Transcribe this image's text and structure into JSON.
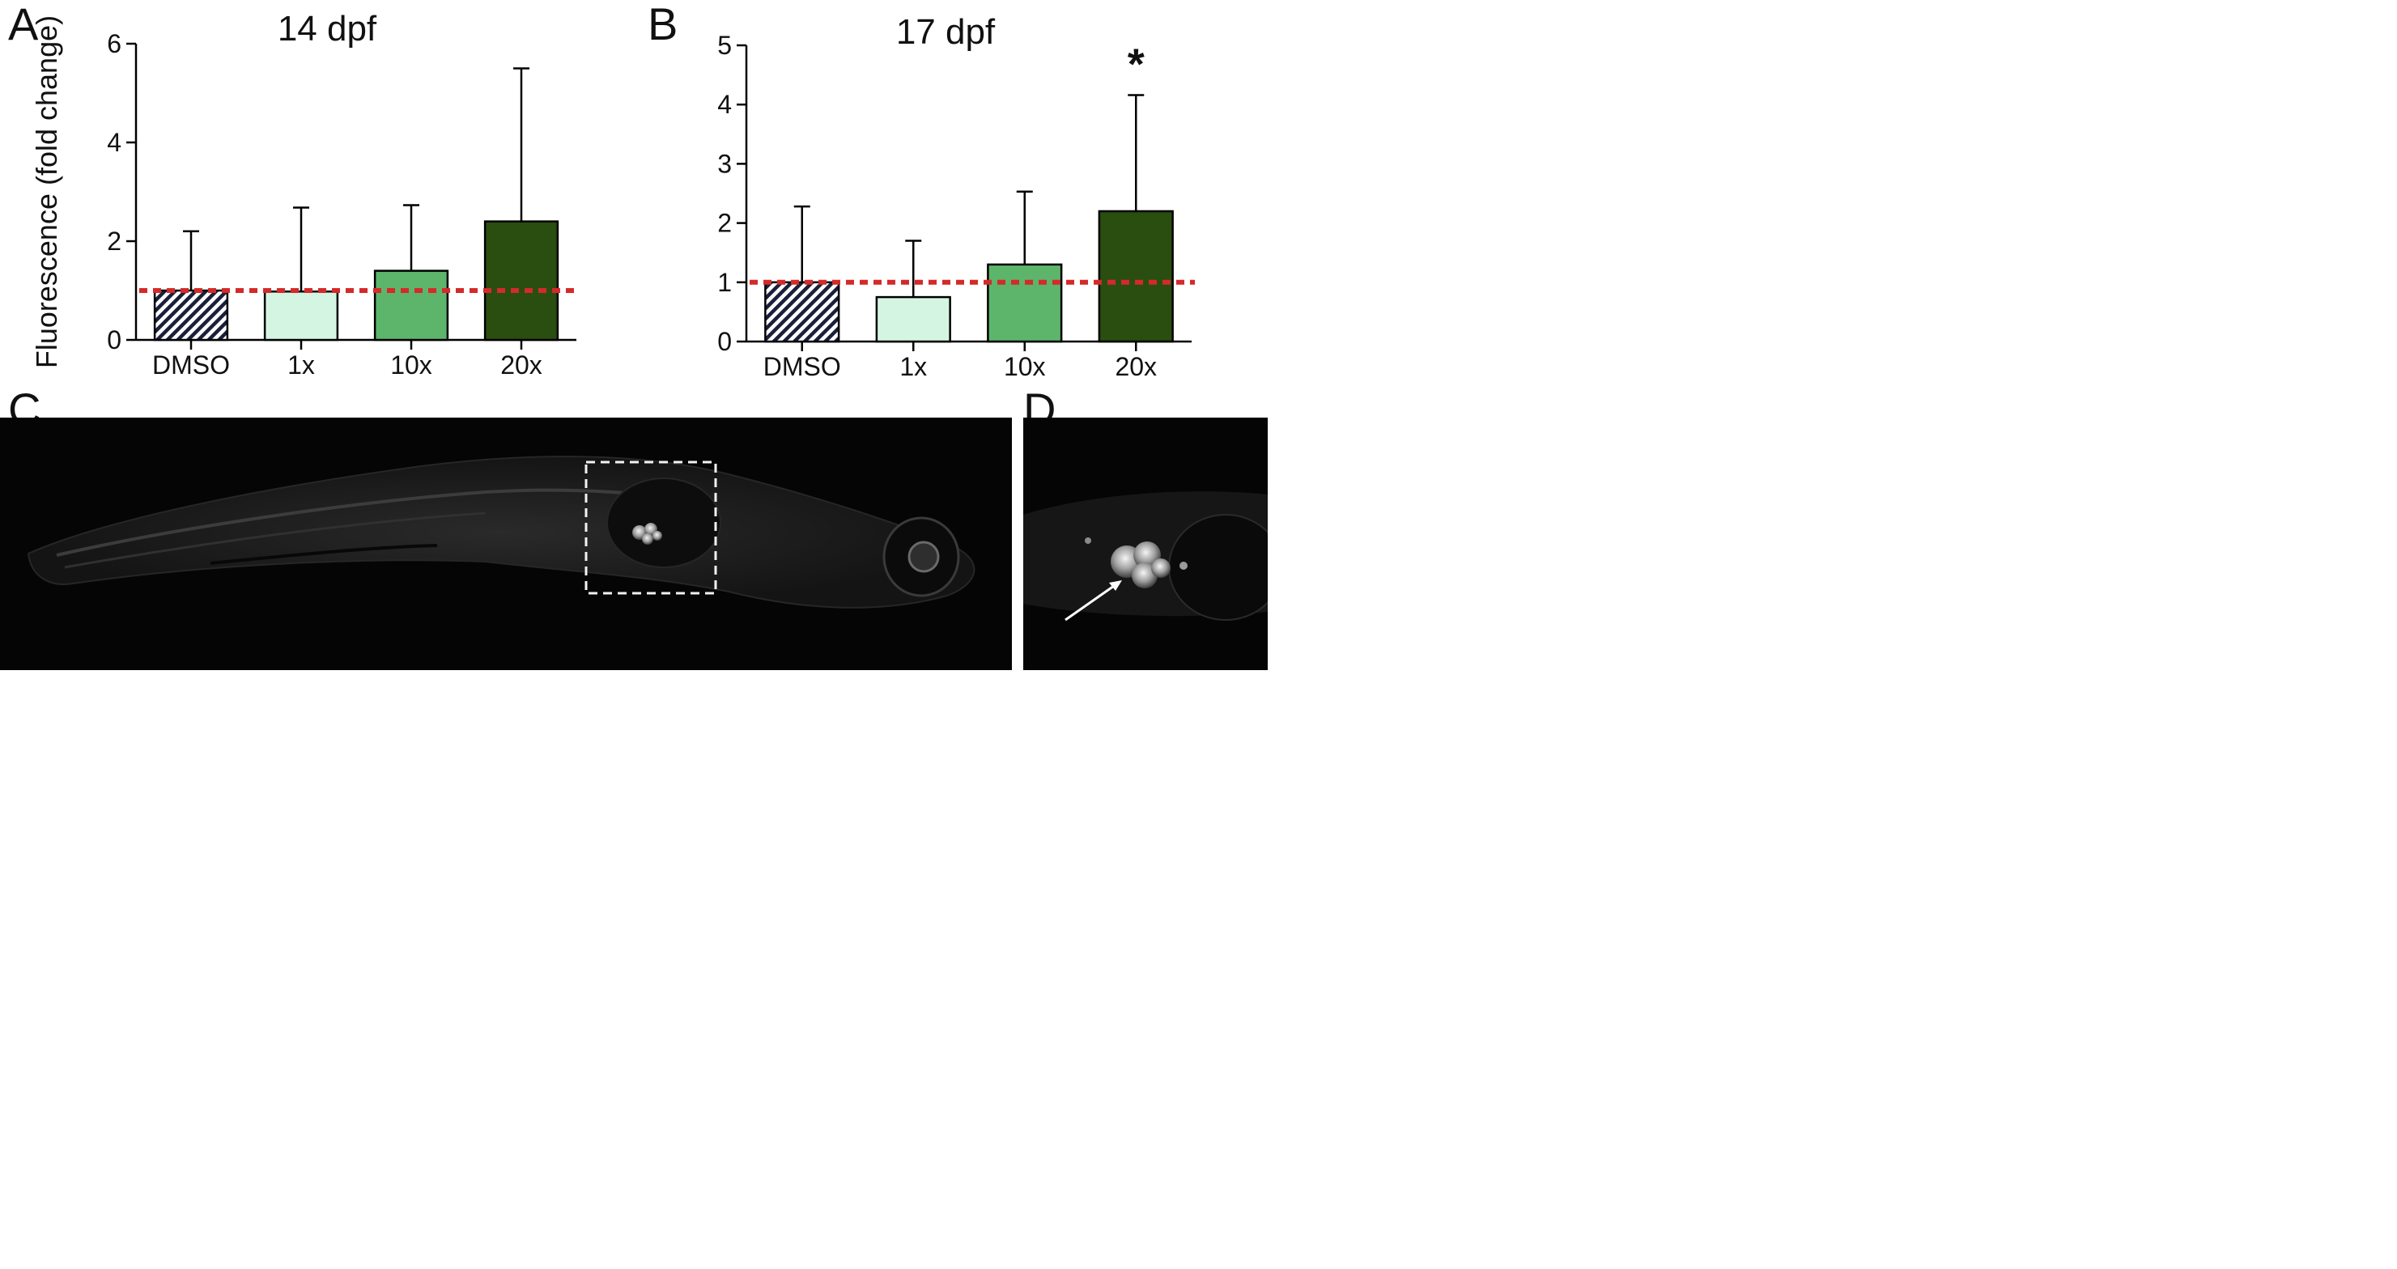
{
  "panels": {
    "a": "A",
    "b": "B",
    "c": "C",
    "d": "D"
  },
  "colors": {
    "reference_line": "#d42a2a",
    "dmso_hatch": "#1a1f3a",
    "bar_1x": "#d5f5e3",
    "bar_10x": "#5db56b",
    "bar_20x": "#2a4d10",
    "axis": "#000000"
  },
  "chart_data": [
    {
      "type": "bar",
      "title": "14 dpf",
      "ylabel": "Fluorescence (fold change)",
      "xlabel": "",
      "categories": [
        "DMSO",
        "1x",
        "10x",
        "20x"
      ],
      "values": [
        1.0,
        0.98,
        1.4,
        2.4
      ],
      "error_upper": [
        2.2,
        2.68,
        2.73,
        5.5
      ],
      "ylim": [
        0,
        6
      ],
      "yticks": [
        "0",
        "2",
        "4",
        "6"
      ],
      "ytick_values": [
        0,
        2,
        4,
        6
      ],
      "reference_line": 1,
      "annotations": [],
      "grid": false
    },
    {
      "type": "bar",
      "title": "17 dpf",
      "ylabel": "",
      "xlabel": "",
      "categories": [
        "DMSO",
        "1x",
        "10x",
        "20x"
      ],
      "values": [
        1.0,
        0.75,
        1.3,
        2.2
      ],
      "error_upper": [
        2.28,
        1.7,
        2.53,
        4.16
      ],
      "ylim": [
        0,
        5
      ],
      "yticks": [
        "0",
        "1",
        "2",
        "3",
        "4",
        "5"
      ],
      "ytick_values": [
        0,
        1,
        2,
        3,
        4,
        5
      ],
      "reference_line": 1,
      "annotations": [
        {
          "category": "20x",
          "text": "*"
        }
      ],
      "grid": false
    }
  ],
  "bar_styles": [
    "hatch",
    "1x",
    "10x",
    "20x"
  ]
}
